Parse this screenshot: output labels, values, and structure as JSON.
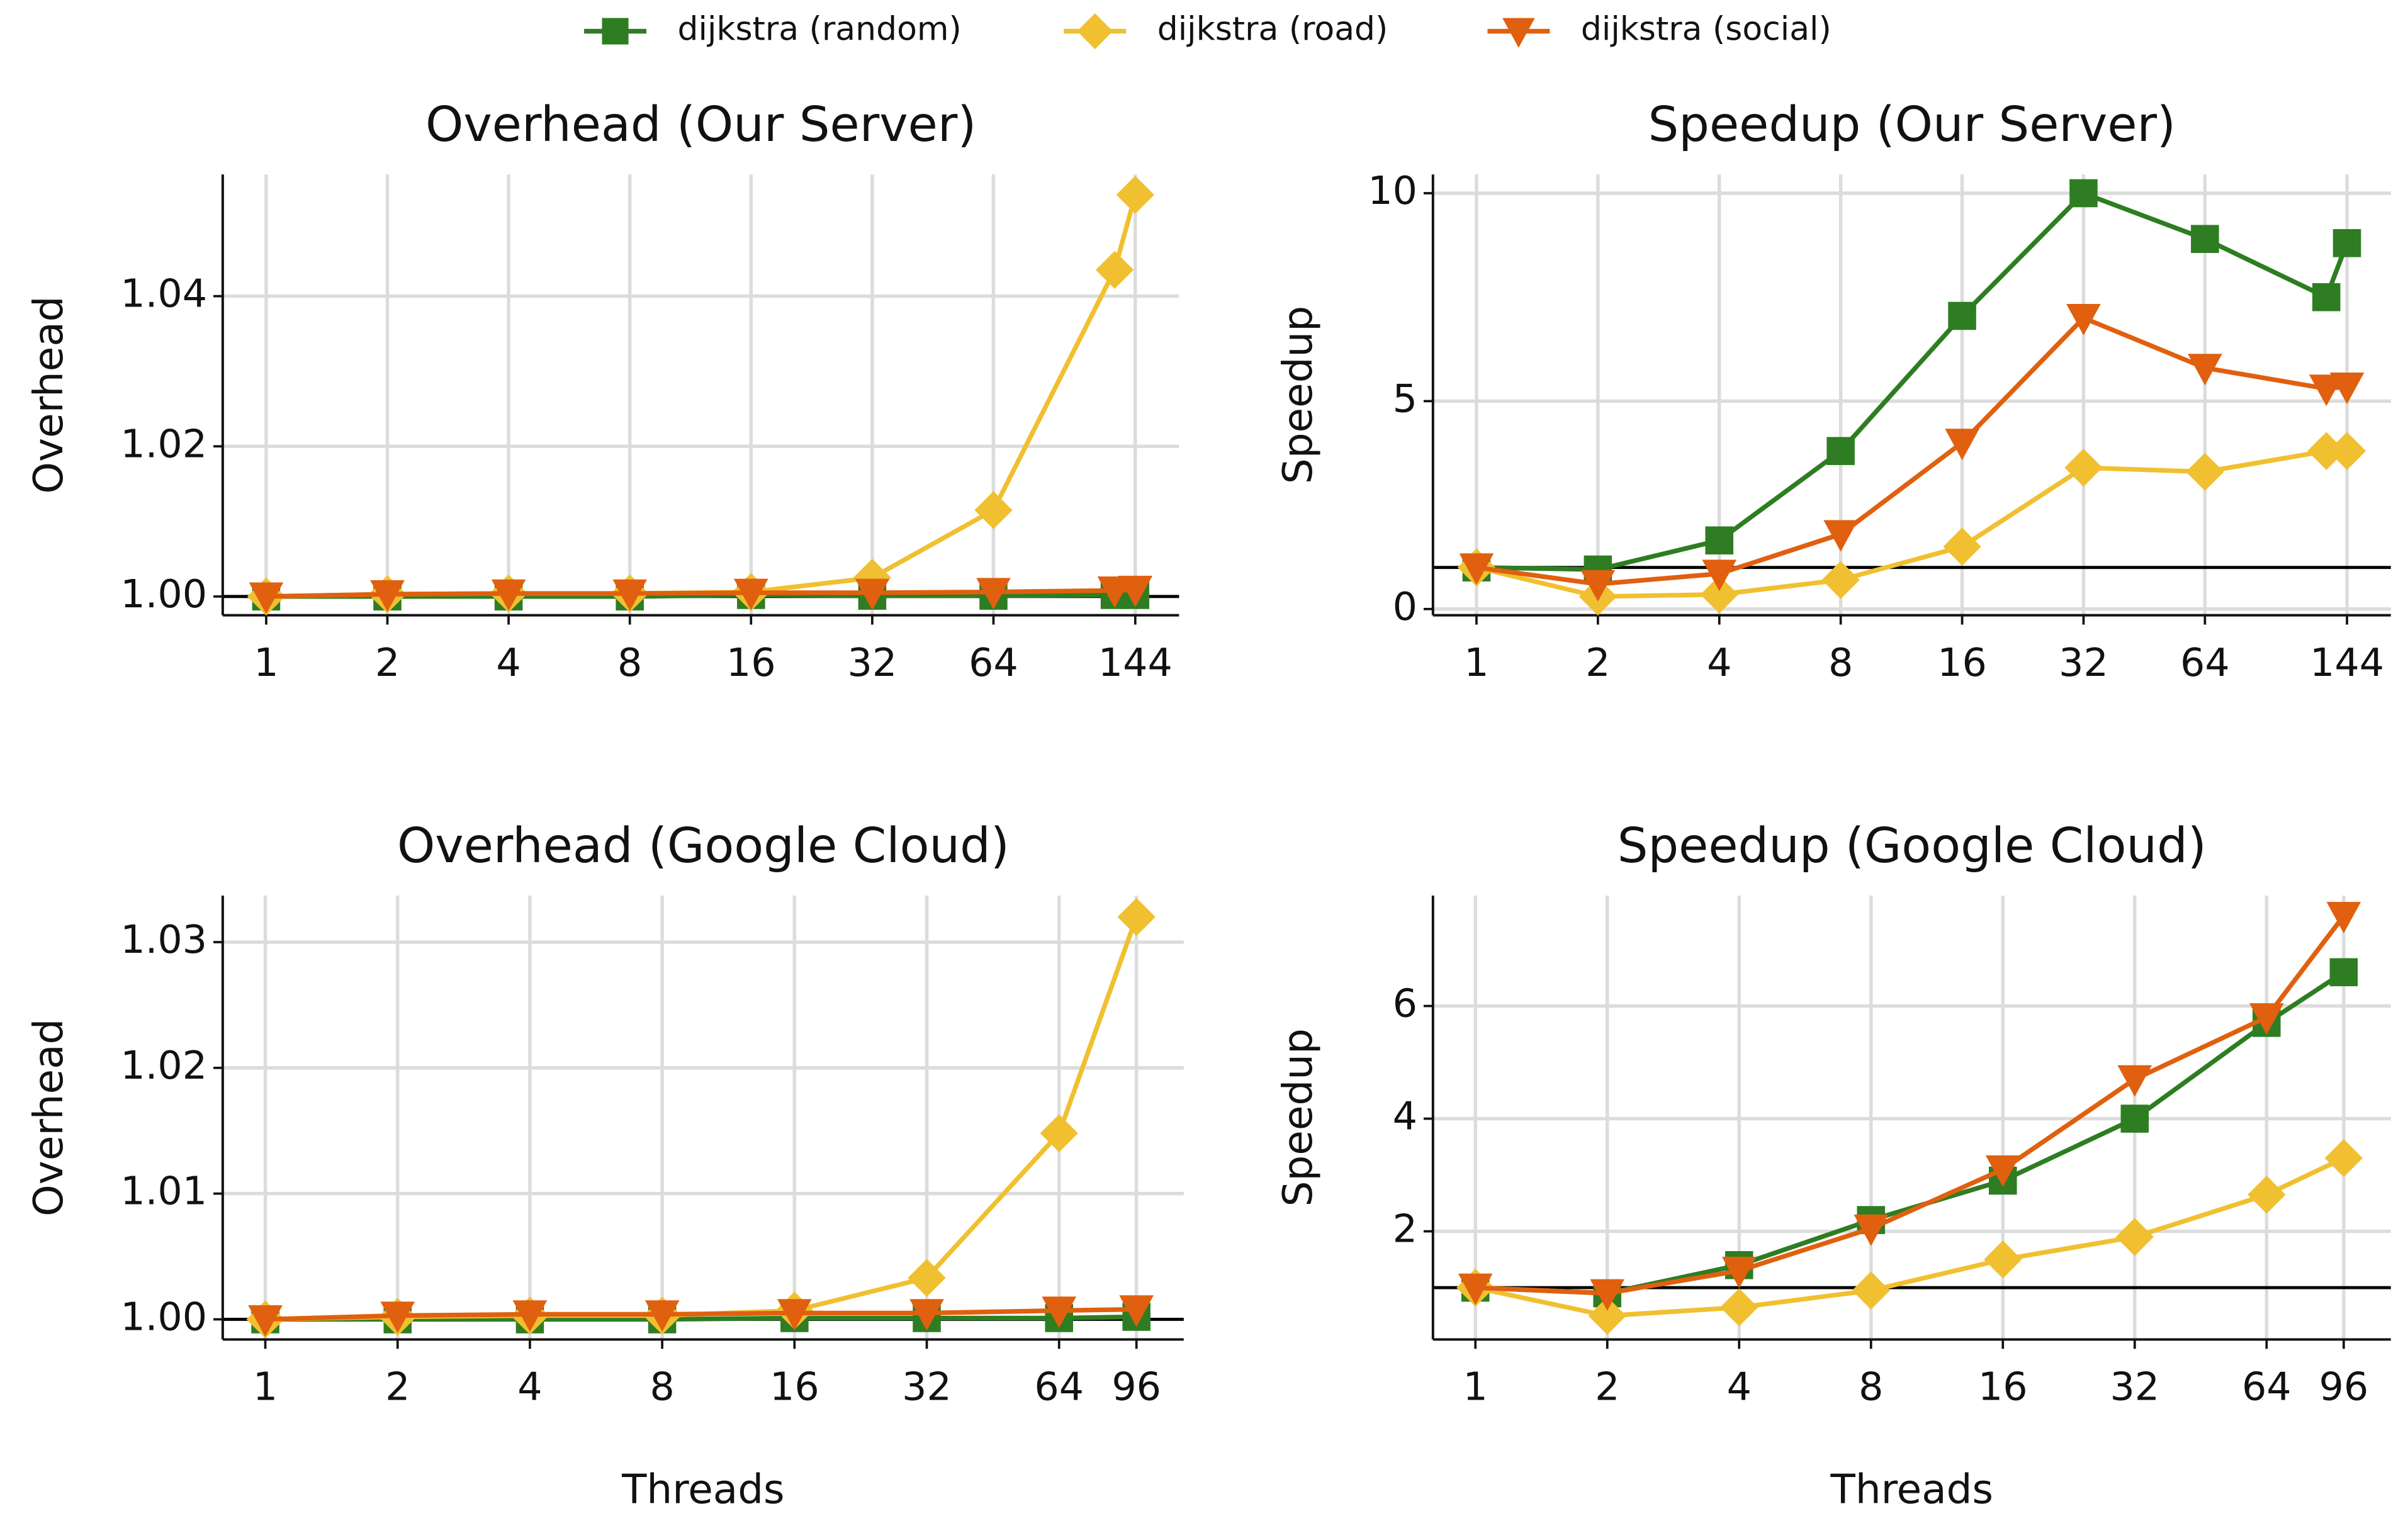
{
  "chart_data": [
    {
      "type": "line",
      "title": "Overhead (Our Server)",
      "ylabel": "Overhead",
      "xscale": "log",
      "x": [
        1,
        2,
        4,
        8,
        16,
        32,
        64,
        128,
        144
      ],
      "xlim": [
        0.78,
        185
      ],
      "xticks": [
        1,
        2,
        4,
        8,
        16,
        32,
        64,
        144
      ],
      "ylim": [
        0.9975,
        1.0562
      ],
      "yticks": [
        {
          "value": 1.0,
          "label": "1.00"
        },
        {
          "value": 1.02,
          "label": "1.02"
        },
        {
          "value": 1.04,
          "label": "1.04"
        }
      ],
      "grid": true,
      "legend": "upper center",
      "hline": 1,
      "series": [
        {
          "name": "dijkstra (random)",
          "color": "#2e7d22",
          "marker": "square",
          "values": [
            1.0,
            1.0,
            1.0,
            1.0,
            1.0002,
            1.0001,
            1.0001,
            1.0002,
            1.0002
          ]
        },
        {
          "name": "dijkstra (road)",
          "color": "#f0c030",
          "marker": "diamond",
          "values": [
            1.0,
            1.0003,
            1.0004,
            1.0004,
            1.0006,
            1.0025,
            1.0115,
            1.0435,
            1.0535
          ]
        },
        {
          "name": "dijkstra (social)",
          "color": "#e0600f",
          "marker": "triangle",
          "values": [
            1.0,
            1.0003,
            1.0004,
            1.0004,
            1.0005,
            1.0005,
            1.0006,
            1.0008,
            1.0009
          ]
        }
      ]
    },
    {
      "type": "line",
      "title": "Speedup (Our Server)",
      "ylabel": "Speedup",
      "xscale": "log",
      "x": [
        1,
        2,
        4,
        8,
        16,
        32,
        64,
        128,
        144
      ],
      "xlim": [
        0.78,
        185
      ],
      "xticks": [
        1,
        2,
        4,
        8,
        16,
        32,
        64,
        144
      ],
      "ylim": [
        -0.15,
        10.45
      ],
      "yticks": [
        0,
        5,
        10
      ],
      "grid": true,
      "hline": 1,
      "series": [
        {
          "name": "dijkstra (random)",
          "color": "#2e7d22",
          "marker": "square",
          "values": [
            1,
            0.95,
            1.65,
            3.8,
            7.05,
            10,
            8.9,
            7.5,
            8.8
          ]
        },
        {
          "name": "dijkstra (road)",
          "color": "#f0c030",
          "marker": "diamond",
          "values": [
            1,
            0.3,
            0.35,
            0.7,
            1.5,
            3.4,
            3.3,
            3.8,
            3.8
          ]
        },
        {
          "name": "dijkstra (social)",
          "color": "#e0600f",
          "marker": "triangle",
          "values": [
            1,
            0.6,
            0.85,
            1.8,
            4,
            7,
            5.8,
            5.3,
            5.35
          ]
        }
      ]
    },
    {
      "type": "line",
      "title": "Overhead (Google Cloud)",
      "ylabel": "Overhead",
      "xlabel": "Threads",
      "xscale": "log",
      "x": [
        1,
        2,
        4,
        8,
        16,
        32,
        64,
        96
      ],
      "xlim": [
        0.8,
        123
      ],
      "xticks": [
        1,
        2,
        4,
        8,
        16,
        32,
        64,
        96
      ],
      "ylim": [
        0.9984,
        1.0337
      ],
      "yticks": [
        {
          "value": 1.0,
          "label": "1.00"
        },
        {
          "value": 1.01,
          "label": "1.01"
        },
        {
          "value": 1.02,
          "label": "1.02"
        },
        {
          "value": 1.03,
          "label": "1.03"
        }
      ],
      "grid": true,
      "hline": 1,
      "series": [
        {
          "name": "dijkstra (random)",
          "color": "#2e7d22",
          "marker": "square",
          "values": [
            1.0,
            1.0,
            1.0,
            1.0,
            1.0001,
            1.0001,
            1.0001,
            1.0002
          ]
        },
        {
          "name": "dijkstra (road)",
          "color": "#f0c030",
          "marker": "diamond",
          "values": [
            1.0,
            1.0002,
            1.0003,
            1.0003,
            1.0007,
            1.0033,
            1.0148,
            1.032
          ]
        },
        {
          "name": "dijkstra (social)",
          "color": "#e0600f",
          "marker": "triangle",
          "values": [
            1.0,
            1.0003,
            1.0004,
            1.0004,
            1.0005,
            1.0005,
            1.0007,
            1.0008
          ]
        }
      ]
    },
    {
      "type": "line",
      "title": "Speedup (Google Cloud)",
      "ylabel": "Speedup",
      "xlabel": "Threads",
      "xscale": "log",
      "x": [
        1,
        2,
        4,
        8,
        16,
        32,
        64,
        96
      ],
      "xlim": [
        0.8,
        123
      ],
      "xticks": [
        1,
        2,
        4,
        8,
        16,
        32,
        64,
        96
      ],
      "ylim": [
        0.08,
        7.96
      ],
      "yticks": [
        2,
        4,
        6
      ],
      "grid": true,
      "hline": 1,
      "series": [
        {
          "name": "dijkstra (random)",
          "color": "#2e7d22",
          "marker": "square",
          "values": [
            1,
            0.9,
            1.4,
            2.2,
            2.9,
            4.0,
            5.7,
            6.6
          ]
        },
        {
          "name": "dijkstra (road)",
          "color": "#f0c030",
          "marker": "diamond",
          "values": [
            1,
            0.5,
            0.65,
            0.95,
            1.5,
            1.9,
            2.65,
            3.3
          ]
        },
        {
          "name": "dijkstra (social)",
          "color": "#e0600f",
          "marker": "triangle",
          "values": [
            1,
            0.9,
            1.3,
            2.05,
            3.1,
            4.7,
            5.8,
            7.6
          ]
        }
      ]
    }
  ]
}
